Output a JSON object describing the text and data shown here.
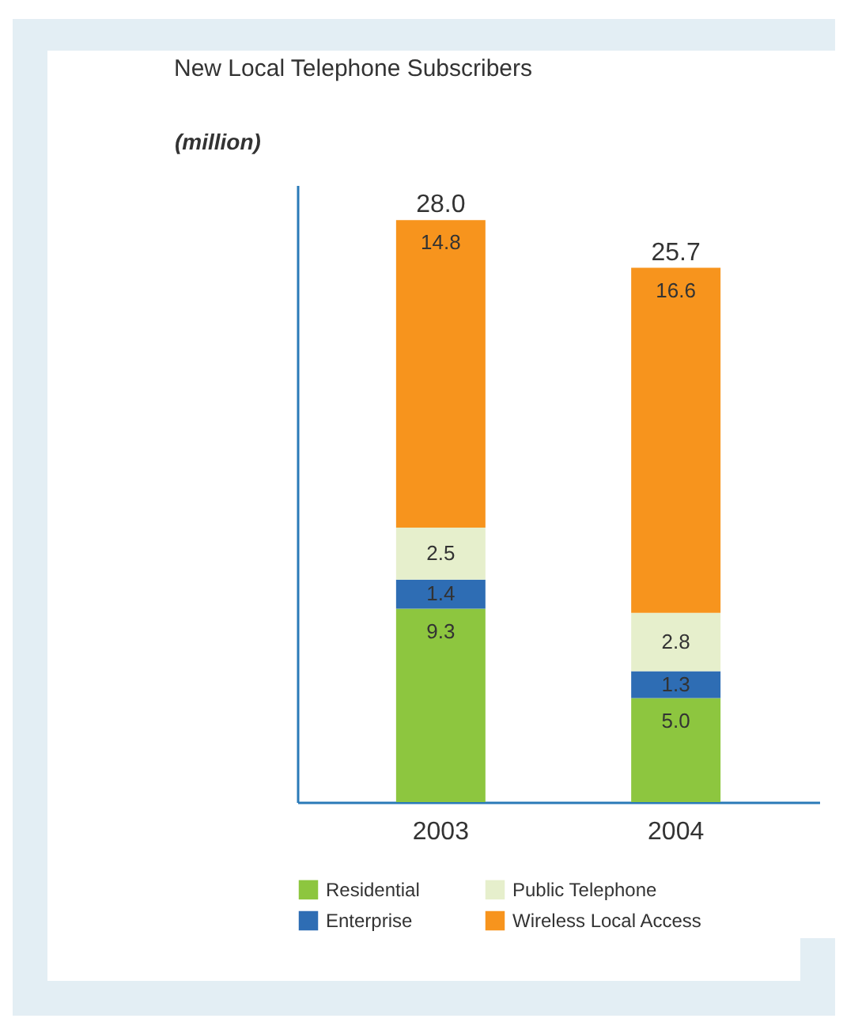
{
  "chart_data": {
    "type": "bar",
    "title": "New Local Telephone Subscribers",
    "ylabel": "(million)",
    "categories": [
      "2003",
      "2004"
    ],
    "stacked": true,
    "legend": "bottom",
    "series": [
      {
        "name": "Residential",
        "color": "#8dc63f",
        "values": [
          9.3,
          5.0
        ],
        "value_labels": [
          "9.3",
          "5.0"
        ]
      },
      {
        "name": "Enterprise",
        "color": "#2e6db4",
        "values": [
          1.4,
          1.3
        ],
        "value_labels": [
          "1.4",
          "1.3"
        ]
      },
      {
        "name": "Public Telephone",
        "color": "#e6efcc",
        "values": [
          2.5,
          2.8
        ],
        "value_labels": [
          "2.5",
          "2.8"
        ]
      },
      {
        "name": "Wireless Local Access",
        "color": "#f7941d",
        "values": [
          14.8,
          16.6
        ],
        "value_labels": [
          "14.8",
          "16.6"
        ]
      }
    ],
    "totals": [
      "28.0",
      "25.7"
    ]
  }
}
